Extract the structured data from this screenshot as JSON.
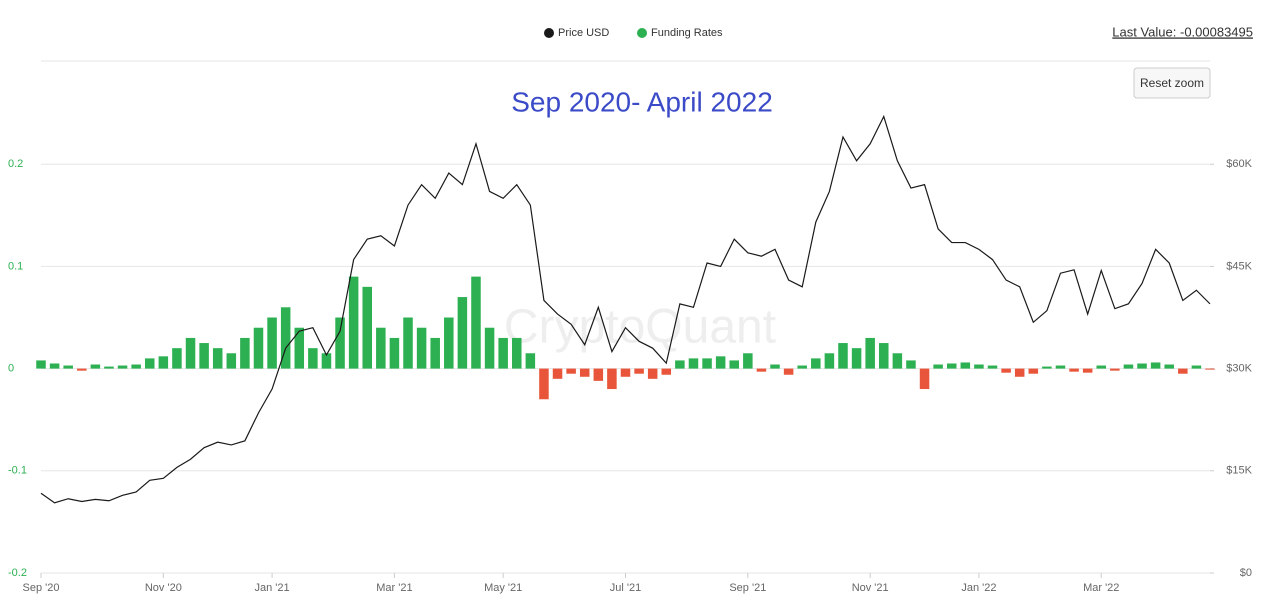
{
  "chart_data": {
    "type": "bar-line",
    "legend": [
      "Price USD",
      "Funding Rates"
    ],
    "last_value": "Last Value: -0.00083495",
    "reset_button": "Reset zoom",
    "annotation": "Sep 2020- April 2022",
    "watermark": "CryptoQuant",
    "categories": [
      "Sep '20",
      null,
      null,
      null,
      null,
      null,
      null,
      null,
      null,
      "Nov '20",
      null,
      null,
      null,
      null,
      null,
      null,
      null,
      "Jan '21",
      null,
      null,
      null,
      null,
      null,
      null,
      null,
      null,
      "Mar '21",
      null,
      null,
      null,
      null,
      null,
      null,
      null,
      "May '21",
      null,
      null,
      null,
      null,
      null,
      null,
      null,
      null,
      "Jul '21",
      null,
      null,
      null,
      null,
      null,
      null,
      null,
      null,
      "Sep '21",
      null,
      null,
      null,
      null,
      null,
      null,
      null,
      null,
      "Nov '21",
      null,
      null,
      null,
      null,
      null,
      null,
      null,
      "Jan '22",
      null,
      null,
      null,
      null,
      null,
      null,
      null,
      null,
      "Mar '22",
      null,
      null,
      null,
      null,
      null,
      null,
      null,
      null
    ],
    "series": [
      {
        "name": "Funding Rates",
        "type": "bar",
        "color": "#2db052",
        "negative_color": "#e8553a",
        "values": [
          0.008,
          0.005,
          0.003,
          -0.002,
          0.004,
          0.002,
          0.003,
          0.004,
          0.01,
          0.012,
          0.02,
          0.03,
          0.025,
          0.02,
          0.015,
          0.03,
          0.04,
          0.05,
          0.06,
          0.04,
          0.02,
          0.015,
          0.05,
          0.09,
          0.08,
          0.04,
          0.03,
          0.05,
          0.04,
          0.03,
          0.05,
          0.07,
          0.09,
          0.04,
          0.03,
          0.03,
          0.015,
          -0.03,
          -0.01,
          -0.005,
          -0.008,
          -0.012,
          -0.02,
          -0.008,
          -0.005,
          -0.01,
          -0.006,
          0.008,
          0.01,
          0.01,
          0.012,
          0.008,
          0.015,
          -0.003,
          0.004,
          -0.006,
          0.003,
          0.01,
          0.015,
          0.025,
          0.02,
          0.03,
          0.025,
          0.015,
          0.008,
          -0.02,
          0.004,
          0.005,
          0.006,
          0.004,
          0.003,
          -0.004,
          -0.008,
          -0.005,
          0.002,
          0.003,
          -0.003,
          -0.004,
          0.003,
          -0.002,
          0.004,
          0.005,
          0.006,
          0.004,
          -0.005,
          0.003,
          -0.001
        ]
      },
      {
        "name": "Price USD",
        "type": "line",
        "axis": "y2",
        "color": "#1a1a1a",
        "values": [
          11700,
          10300,
          10900,
          10500,
          10800,
          10600,
          11400,
          11900,
          13600,
          13900,
          15500,
          16700,
          18400,
          19200,
          18800,
          19400,
          23500,
          27000,
          33000,
          35500,
          36000,
          32000,
          35500,
          46000,
          49000,
          49500,
          48000,
          54000,
          57000,
          55000,
          58700,
          57000,
          63000,
          56000,
          55000,
          57000,
          54000,
          40000,
          38000,
          36500,
          33500,
          39000,
          32500,
          36000,
          34000,
          33000,
          30800,
          39500,
          39000,
          45500,
          45000,
          49000,
          47000,
          46500,
          47500,
          43000,
          42000,
          51500,
          56000,
          64000,
          60500,
          63000,
          67000,
          60500,
          56500,
          57000,
          50500,
          48500,
          48500,
          47500,
          46000,
          43000,
          42000,
          36800,
          38500,
          44000,
          44500,
          38000,
          44400,
          38800,
          39500,
          42500,
          47500,
          45500,
          40000,
          41500,
          39500
        ]
      }
    ],
    "ylim": [
      -0.2,
      0.3
    ],
    "yticks": [
      -0.2,
      -0.1,
      0,
      0.1,
      0.2
    ],
    "y2lim": [
      0,
      75000
    ],
    "y2ticks": [
      {
        "value": 0,
        "label": "$0"
      },
      {
        "value": 15000,
        "label": "$15K"
      },
      {
        "value": 30000,
        "label": "$30K"
      },
      {
        "value": 45000,
        "label": "$45K"
      },
      {
        "value": 60000,
        "label": "$60K"
      }
    ],
    "grid": true
  }
}
